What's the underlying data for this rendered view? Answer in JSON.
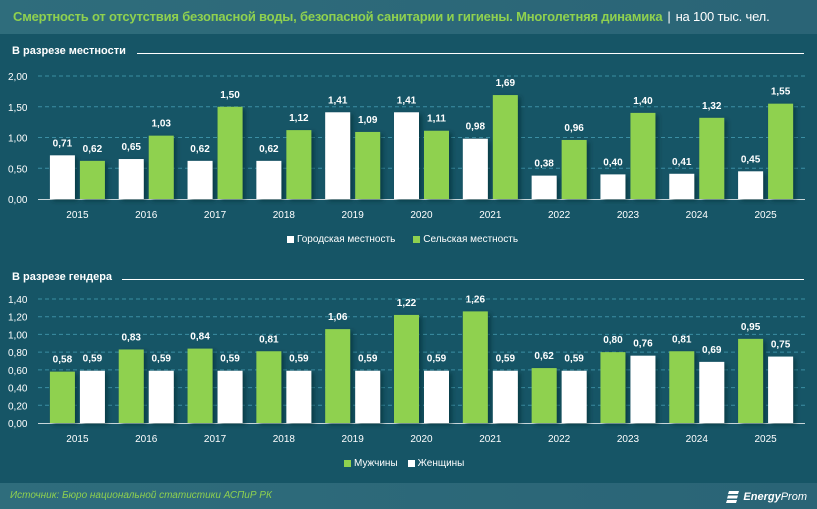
{
  "header": {
    "title": "Смертность от отсутствия безопасной воды, безопасной санитарии и гигиены. Многолетняя динамика",
    "separator": "|",
    "unit": "на 100 тыс. чел."
  },
  "colors": {
    "background": "#165566",
    "green": "#8fd14f",
    "white": "#ffffff",
    "grid": "#3b8ea3"
  },
  "chart_data": [
    {
      "type": "bar",
      "title": "В разрезе местности",
      "categories": [
        "2015",
        "2016",
        "2017",
        "2018",
        "2019",
        "2020",
        "2021",
        "2022",
        "2023",
        "2024",
        "2025"
      ],
      "series": [
        {
          "name": "Городская местность",
          "color": "#ffffff",
          "values": [
            0.71,
            0.65,
            0.62,
            0.62,
            1.41,
            1.41,
            0.98,
            0.38,
            0.4,
            0.41,
            0.45
          ],
          "labels": [
            "0,71",
            "0,65",
            "0,62",
            "0,62",
            "1,41",
            "1,41",
            "0,98",
            "0,38",
            "0,40",
            "0,41",
            "0,45"
          ]
        },
        {
          "name": "Сельская местность",
          "color": "#8fd14f",
          "values": [
            0.62,
            1.03,
            1.5,
            1.12,
            1.09,
            1.11,
            1.69,
            0.96,
            1.4,
            1.32,
            1.55
          ],
          "labels": [
            "0,62",
            "1,03",
            "1,50",
            "1,12",
            "1,09",
            "1,11",
            "1,69",
            "0,96",
            "1,40",
            "1,32",
            "1,55"
          ]
        }
      ],
      "yticks": [
        "0,00",
        "0,50",
        "1,00",
        "1,50",
        "2,00"
      ],
      "ytick_values": [
        0,
        0.5,
        1.0,
        1.5,
        2.0
      ],
      "ylim": [
        0,
        2.0
      ],
      "grid": true,
      "legend": "bottom-center"
    },
    {
      "type": "bar",
      "title": "В разрезе гендера",
      "categories": [
        "2015",
        "2016",
        "2017",
        "2018",
        "2019",
        "2020",
        "2021",
        "2022",
        "2023",
        "2024",
        "2025"
      ],
      "series": [
        {
          "name": "Мужчины",
          "color": "#8fd14f",
          "values": [
            0.58,
            0.83,
            0.84,
            0.81,
            1.06,
            1.22,
            1.26,
            0.62,
            0.8,
            0.81,
            0.95
          ],
          "labels": [
            "0,58",
            "0,83",
            "0,84",
            "0,81",
            "1,06",
            "1,22",
            "1,26",
            "0,62",
            "0,80",
            "0,81",
            "0,95"
          ]
        },
        {
          "name": "Женщины",
          "color": "#ffffff",
          "values": [
            0.59,
            0.59,
            0.59,
            0.59,
            0.59,
            0.59,
            0.59,
            0.59,
            0.76,
            0.69,
            0.75
          ],
          "labels": [
            "0,59",
            "0,59",
            "0,59",
            "0,59",
            "0,59",
            "0,59",
            "0,59",
            "0,59",
            "0,76",
            "0,69",
            "0,75"
          ]
        }
      ],
      "yticks": [
        "0,00",
        "0,20",
        "0,40",
        "0,60",
        "0,80",
        "1,00",
        "1,20",
        "1,40"
      ],
      "ytick_values": [
        0,
        0.2,
        0.4,
        0.6,
        0.8,
        1.0,
        1.2,
        1.4
      ],
      "ylim": [
        0,
        1.4
      ],
      "grid": true,
      "legend": "bottom-center"
    }
  ],
  "footer": {
    "source": "Источник: Бюро национальной статистики АСПиР РК",
    "logo_bold": "Energy",
    "logo_thin": "Prom"
  }
}
